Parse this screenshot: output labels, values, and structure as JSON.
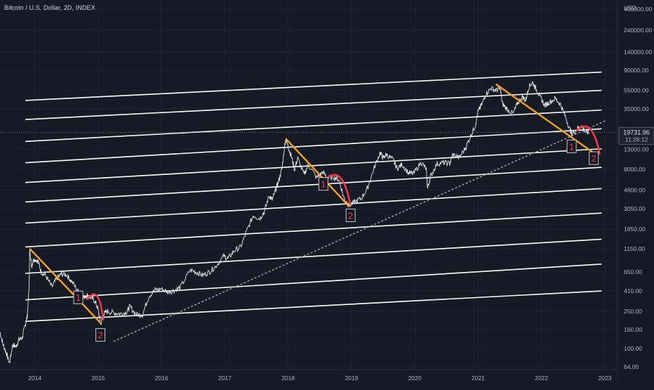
{
  "header": {
    "title": "Bitcoin / U.S. Dollar, 2D, INDEX"
  },
  "chart_data": {
    "type": "line",
    "title": "Bitcoin / U.S. Dollar, 2D, INDEX",
    "currency_label": "USD",
    "y_scale": "log",
    "ylim": [
      60,
      500000
    ],
    "xlim": [
      2013.45,
      2023.2
    ],
    "x_ticks": [
      {
        "value": 2014,
        "label": "2014"
      },
      {
        "value": 2015,
        "label": "2015"
      },
      {
        "value": 2016,
        "label": "2016"
      },
      {
        "value": 2017,
        "label": "2017"
      },
      {
        "value": 2018,
        "label": "2018"
      },
      {
        "value": 2019,
        "label": "2019"
      },
      {
        "value": 2020,
        "label": "2020"
      },
      {
        "value": 2021,
        "label": "2021"
      },
      {
        "value": 2022,
        "label": "2022"
      },
      {
        "value": 2023,
        "label": "2023"
      }
    ],
    "y_ticks": [
      {
        "value": 400000,
        "label": "400000.00"
      },
      {
        "value": 240000,
        "label": "240000.00"
      },
      {
        "value": 140000,
        "label": "140000.00"
      },
      {
        "value": 90000,
        "label": "90000.00"
      },
      {
        "value": 55000,
        "label": "55000.00"
      },
      {
        "value": 35000,
        "label": "35000.00"
      },
      {
        "value": 13000,
        "label": "13000.00"
      },
      {
        "value": 8000,
        "label": "8000.00"
      },
      {
        "value": 4800,
        "label": "4800.00"
      },
      {
        "value": 3050,
        "label": "3050.00"
      },
      {
        "value": 1850,
        "label": "1850.00"
      },
      {
        "value": 1150,
        "label": "1150.00"
      },
      {
        "value": 650,
        "label": "650.00"
      },
      {
        "value": 410,
        "label": "410.00"
      },
      {
        "value": 250,
        "label": "250.00"
      },
      {
        "value": 160,
        "label": "160.00"
      },
      {
        "value": 100,
        "label": "100.00"
      },
      {
        "value": 64,
        "label": "64.00"
      }
    ],
    "current_price": {
      "value": 19731.96,
      "label": "19731.96",
      "countdown": "11:28:12"
    },
    "colors": {
      "background": "#161a25",
      "price": "#e6e6e6",
      "channel": "#ffffff",
      "trend_down": "#f7a21b",
      "arc": "#f23645",
      "trend_up_dotted": "#9aa39b",
      "axis_text": "#b2b5be",
      "grid": "#1f2330"
    },
    "grid": true,
    "price_series": [
      [
        2013.45,
        150
      ],
      [
        2013.5,
        110
      ],
      [
        2013.55,
        90
      ],
      [
        2013.6,
        70
      ],
      [
        2013.65,
        110
      ],
      [
        2013.7,
        105
      ],
      [
        2013.75,
        125
      ],
      [
        2013.8,
        130
      ],
      [
        2013.85,
        180
      ],
      [
        2013.88,
        220
      ],
      [
        2013.91,
        450
      ],
      [
        2013.92,
        1150
      ],
      [
        2013.95,
        750
      ],
      [
        2013.98,
        900
      ],
      [
        2014.05,
        850
      ],
      [
        2014.1,
        650
      ],
      [
        2014.17,
        600
      ],
      [
        2014.27,
        450
      ],
      [
        2014.35,
        560
      ],
      [
        2014.42,
        620
      ],
      [
        2014.5,
        610
      ],
      [
        2014.58,
        520
      ],
      [
        2014.68,
        410
      ],
      [
        2014.75,
        340
      ],
      [
        2014.82,
        370
      ],
      [
        2014.88,
        350
      ],
      [
        2014.95,
        320
      ],
      [
        2015.0,
        260
      ],
      [
        2015.04,
        180
      ],
      [
        2015.08,
        230
      ],
      [
        2015.15,
        250
      ],
      [
        2015.25,
        240
      ],
      [
        2015.35,
        235
      ],
      [
        2015.45,
        245
      ],
      [
        2015.5,
        280
      ],
      [
        2015.6,
        230
      ],
      [
        2015.7,
        230
      ],
      [
        2015.8,
        360
      ],
      [
        2015.9,
        420
      ],
      [
        2016.0,
        430
      ],
      [
        2016.1,
        400
      ],
      [
        2016.2,
        415
      ],
      [
        2016.3,
        450
      ],
      [
        2016.45,
        680
      ],
      [
        2016.55,
        650
      ],
      [
        2016.65,
        600
      ],
      [
        2016.75,
        650
      ],
      [
        2016.85,
        740
      ],
      [
        2016.98,
        960
      ],
      [
        2017.05,
        900
      ],
      [
        2017.15,
        1100
      ],
      [
        2017.25,
        1200
      ],
      [
        2017.35,
        1800
      ],
      [
        2017.45,
        2600
      ],
      [
        2017.55,
        2400
      ],
      [
        2017.62,
        2800
      ],
      [
        2017.7,
        4200
      ],
      [
        2017.75,
        3800
      ],
      [
        2017.8,
        4800
      ],
      [
        2017.85,
        6000
      ],
      [
        2017.9,
        8000
      ],
      [
        2017.96,
        17000
      ],
      [
        2018.0,
        14000
      ],
      [
        2018.05,
        11000
      ],
      [
        2018.1,
        8000
      ],
      [
        2018.15,
        10500
      ],
      [
        2018.25,
        7000
      ],
      [
        2018.32,
        9000
      ],
      [
        2018.45,
        6500
      ],
      [
        2018.55,
        7500
      ],
      [
        2018.62,
        6400
      ],
      [
        2018.72,
        6600
      ],
      [
        2018.8,
        6300
      ],
      [
        2018.88,
        4000
      ],
      [
        2018.96,
        3300
      ],
      [
        2019.05,
        3600
      ],
      [
        2019.15,
        3900
      ],
      [
        2019.25,
        5000
      ],
      [
        2019.35,
        8000
      ],
      [
        2019.45,
        12000
      ],
      [
        2019.5,
        10500
      ],
      [
        2019.55,
        11500
      ],
      [
        2019.65,
        10200
      ],
      [
        2019.72,
        8200
      ],
      [
        2019.8,
        9000
      ],
      [
        2019.9,
        7300
      ],
      [
        2019.98,
        7200
      ],
      [
        2020.1,
        9500
      ],
      [
        2020.18,
        8000
      ],
      [
        2020.2,
        5000
      ],
      [
        2020.25,
        6800
      ],
      [
        2020.35,
        9200
      ],
      [
        2020.45,
        9400
      ],
      [
        2020.55,
        9200
      ],
      [
        2020.6,
        11500
      ],
      [
        2020.7,
        10600
      ],
      [
        2020.8,
        13500
      ],
      [
        2020.88,
        18000
      ],
      [
        2020.95,
        23000
      ],
      [
        2021.0,
        33000
      ],
      [
        2021.05,
        38000
      ],
      [
        2021.12,
        50000
      ],
      [
        2021.2,
        58000
      ],
      [
        2021.28,
        55000
      ],
      [
        2021.35,
        57000
      ],
      [
        2021.38,
        40000
      ],
      [
        2021.45,
        35000
      ],
      [
        2021.55,
        31000
      ],
      [
        2021.62,
        40000
      ],
      [
        2021.7,
        47000
      ],
      [
        2021.75,
        43000
      ],
      [
        2021.8,
        60000
      ],
      [
        2021.86,
        67000
      ],
      [
        2021.92,
        56000
      ],
      [
        2021.98,
        47000
      ],
      [
        2022.05,
        38000
      ],
      [
        2022.12,
        41000
      ],
      [
        2022.22,
        45000
      ],
      [
        2022.3,
        39000
      ],
      [
        2022.37,
        30000
      ],
      [
        2022.45,
        21000
      ],
      [
        2022.48,
        19000
      ],
      [
        2022.55,
        21000
      ],
      [
        2022.62,
        23500
      ],
      [
        2022.7,
        20000
      ],
      [
        2022.75,
        19500
      ]
    ],
    "annotations": [
      {
        "label": "1",
        "x": 2014.68,
        "y": 350
      },
      {
        "label": "2",
        "x": 2015.03,
        "y": 140
      },
      {
        "label": "1",
        "x": 2018.55,
        "y": 5600
      },
      {
        "label": "2",
        "x": 2018.98,
        "y": 2600
      },
      {
        "label": "1",
        "x": 2022.47,
        "y": 14000
      },
      {
        "label": "2",
        "x": 2022.82,
        "y": 10500
      }
    ]
  }
}
